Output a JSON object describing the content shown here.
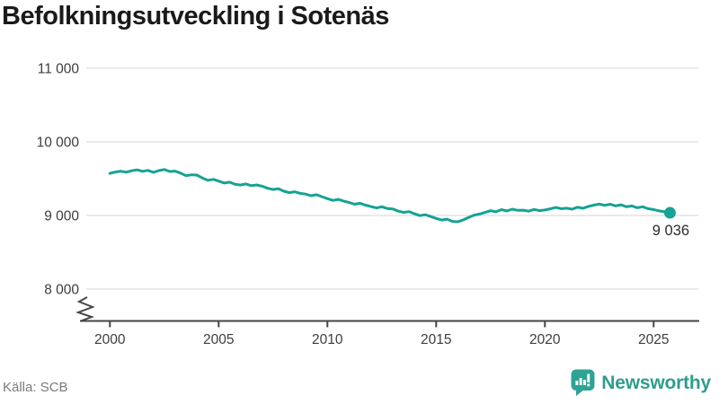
{
  "title": "Befolkningsutveckling i Sotenäs",
  "source": "Källa: SCB",
  "brand": {
    "name": "Newsworthy"
  },
  "colors": {
    "line": "#16a294",
    "marker": "#16a294",
    "grid": "#e4e4e4",
    "axis": "#454545",
    "tick_text": "#3d3d3d",
    "title_text": "#1a1a19",
    "end_label_text": "#2b2b2b",
    "source_text": "#7a7a7a",
    "brand_teal": "#2f9c8e",
    "background": "#ffffff"
  },
  "chart_data": {
    "type": "line",
    "title": "Befolkningsutveckling i Sotenäs",
    "xlabel": "",
    "ylabel": "",
    "frequency": "quarterly",
    "grid": "horizontal",
    "legend": "none",
    "y_axis_break": true,
    "ylim": [
      8000,
      11000
    ],
    "x_ticks": [
      2000,
      2005,
      2010,
      2015,
      2020,
      2025
    ],
    "y_ticks": [
      8000,
      9000,
      10000,
      11000
    ],
    "y_tick_labels": [
      "8 000",
      "9 000",
      "10 000",
      "11 000"
    ],
    "last_value": 9036,
    "last_value_label": "9 036",
    "x": [
      2000,
      2000.25,
      2000.5,
      2000.75,
      2001,
      2001.25,
      2001.5,
      2001.75,
      2002,
      2002.25,
      2002.5,
      2002.75,
      2003,
      2003.25,
      2003.5,
      2003.75,
      2004,
      2004.25,
      2004.5,
      2004.75,
      2005,
      2005.25,
      2005.5,
      2005.75,
      2006,
      2006.25,
      2006.5,
      2006.75,
      2007,
      2007.25,
      2007.5,
      2007.75,
      2008,
      2008.25,
      2008.5,
      2008.75,
      2009,
      2009.25,
      2009.5,
      2009.75,
      2010,
      2010.25,
      2010.5,
      2010.75,
      2011,
      2011.25,
      2011.5,
      2011.75,
      2012,
      2012.25,
      2012.5,
      2012.75,
      2013,
      2013.25,
      2013.5,
      2013.75,
      2014,
      2014.25,
      2014.5,
      2014.75,
      2015,
      2015.25,
      2015.5,
      2015.75,
      2016,
      2016.25,
      2016.5,
      2016.75,
      2017,
      2017.25,
      2017.5,
      2017.75,
      2018,
      2018.25,
      2018.5,
      2018.75,
      2019,
      2019.25,
      2019.5,
      2019.75,
      2020,
      2020.25,
      2020.5,
      2020.75,
      2021,
      2021.25,
      2021.5,
      2021.75,
      2022,
      2022.25,
      2022.5,
      2022.75,
      2023,
      2023.25,
      2023.5,
      2023.75,
      2024,
      2024.25,
      2024.5,
      2024.75,
      2025,
      2025.25,
      2025.5,
      2025.75
    ],
    "values": [
      9572,
      9590,
      9601,
      9588,
      9607,
      9619,
      9600,
      9612,
      9585,
      9610,
      9625,
      9598,
      9602,
      9575,
      9540,
      9552,
      9549,
      9510,
      9478,
      9490,
      9467,
      9440,
      9452,
      9425,
      9414,
      9428,
      9405,
      9415,
      9397,
      9370,
      9352,
      9364,
      9329,
      9310,
      9322,
      9300,
      9290,
      9268,
      9282,
      9255,
      9228,
      9205,
      9218,
      9195,
      9176,
      9152,
      9166,
      9140,
      9121,
      9102,
      9118,
      9095,
      9089,
      9060,
      9042,
      9052,
      9023,
      8998,
      9010,
      8985,
      8960,
      8938,
      8950,
      8920,
      8915,
      8940,
      8975,
      9005,
      9019,
      9042,
      9065,
      9050,
      9079,
      9062,
      9085,
      9070,
      9072,
      9058,
      9082,
      9066,
      9074,
      9090,
      9108,
      9092,
      9099,
      9085,
      9112,
      9098,
      9123,
      9140,
      9155,
      9138,
      9152,
      9130,
      9145,
      9118,
      9129,
      9105,
      9118,
      9092,
      9080,
      9062,
      9050,
      9036
    ]
  }
}
